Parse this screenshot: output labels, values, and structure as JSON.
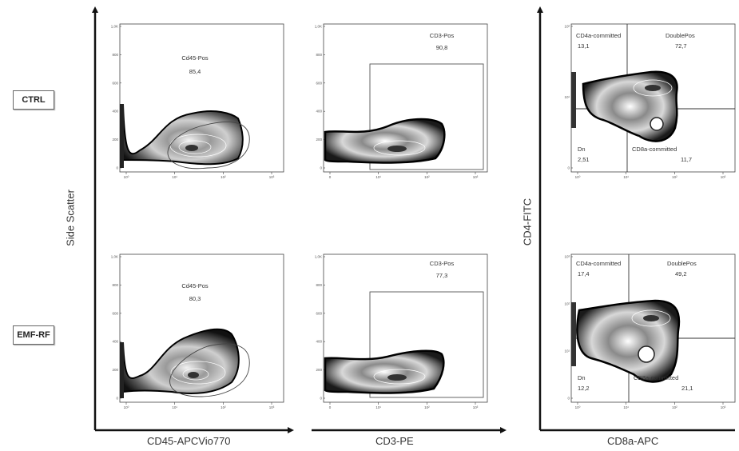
{
  "row_labels": {
    "ctrl": "CTRL",
    "emf": "EMF-RF"
  },
  "axis_labels": {
    "side_scatter": "Side Scatter",
    "cd45": "CD45-APCVio770",
    "cd3": "CD3-PE",
    "cd4": "CD4-FITC",
    "cd8a": "CD8a-APC"
  },
  "chart_data": [
    {
      "id": "ctrl-cd45",
      "type": "scatter",
      "xlabel": "CD45-APCVio770",
      "ylabel": "Side Scatter",
      "y_ticks": [
        "1,0K",
        "800",
        "600",
        "400",
        "200",
        "0"
      ],
      "x_ticks": [
        "10⁰",
        "10¹",
        "10²",
        "10³"
      ],
      "x_scale": "log",
      "ylim": [
        0,
        1000
      ],
      "gates": [
        {
          "name": "Cd45-Pos",
          "value": "85,4"
        }
      ]
    },
    {
      "id": "ctrl-cd3",
      "type": "scatter",
      "xlabel": "CD3-PE",
      "ylabel": "Side Scatter",
      "y_ticks": [
        "1,0K",
        "800",
        "600",
        "400",
        "200",
        "0"
      ],
      "x_ticks": [
        "0",
        "10¹",
        "10²",
        "10³"
      ],
      "x_scale": "log",
      "ylim": [
        0,
        1000
      ],
      "gates": [
        {
          "name": "CD3-Pos",
          "value": "90,8"
        }
      ]
    },
    {
      "id": "ctrl-cd4cd8",
      "type": "scatter",
      "xlabel": "CD8a-APC",
      "ylabel": "CD4-FITC",
      "y_ticks": [
        "10²",
        "10¹",
        "0"
      ],
      "x_ticks": [
        "10⁰",
        "10¹",
        "10²",
        "10³"
      ],
      "x_scale": "log",
      "y_scale": "log",
      "gates": [
        {
          "name": "CD4a-committed",
          "value": "13,1"
        },
        {
          "name": "DoublePos",
          "value": "72,7"
        },
        {
          "name": "Dn",
          "value": "2,51"
        },
        {
          "name": "CD8a-committed",
          "value": "11,7"
        }
      ]
    },
    {
      "id": "emf-cd45",
      "type": "scatter",
      "xlabel": "CD45-APCVio770",
      "ylabel": "Side Scatter",
      "y_ticks": [
        "1,0K",
        "800",
        "600",
        "400",
        "200",
        "0"
      ],
      "x_ticks": [
        "10⁰",
        "10¹",
        "10²",
        "10³"
      ],
      "x_scale": "log",
      "ylim": [
        0,
        1000
      ],
      "gates": [
        {
          "name": "Cd45-Pos",
          "value": "80,3"
        }
      ]
    },
    {
      "id": "emf-cd3",
      "type": "scatter",
      "xlabel": "CD3-PE",
      "ylabel": "Side Scatter",
      "y_ticks": [
        "1,0K",
        "800",
        "600",
        "400",
        "200",
        "0"
      ],
      "x_ticks": [
        "0",
        "10¹",
        "10²",
        "10³"
      ],
      "x_scale": "log",
      "ylim": [
        0,
        1000
      ],
      "gates": [
        {
          "name": "CD3-Pos",
          "value": "77,3"
        }
      ]
    },
    {
      "id": "emf-cd4cd8",
      "type": "scatter",
      "xlabel": "CD8a-APC",
      "ylabel": "CD4-FITC",
      "y_ticks": [
        "10³",
        "10²",
        "10¹",
        "0"
      ],
      "x_ticks": [
        "10⁰",
        "10¹",
        "10²",
        "10³"
      ],
      "x_scale": "log",
      "y_scale": "log",
      "gates": [
        {
          "name": "CD4a-committed",
          "value": "17,4"
        },
        {
          "name": "DoublePos",
          "value": "49,2"
        },
        {
          "name": "Dn",
          "value": "12,2"
        },
        {
          "name": "CD8a-committed",
          "value": "21,1"
        }
      ]
    }
  ]
}
